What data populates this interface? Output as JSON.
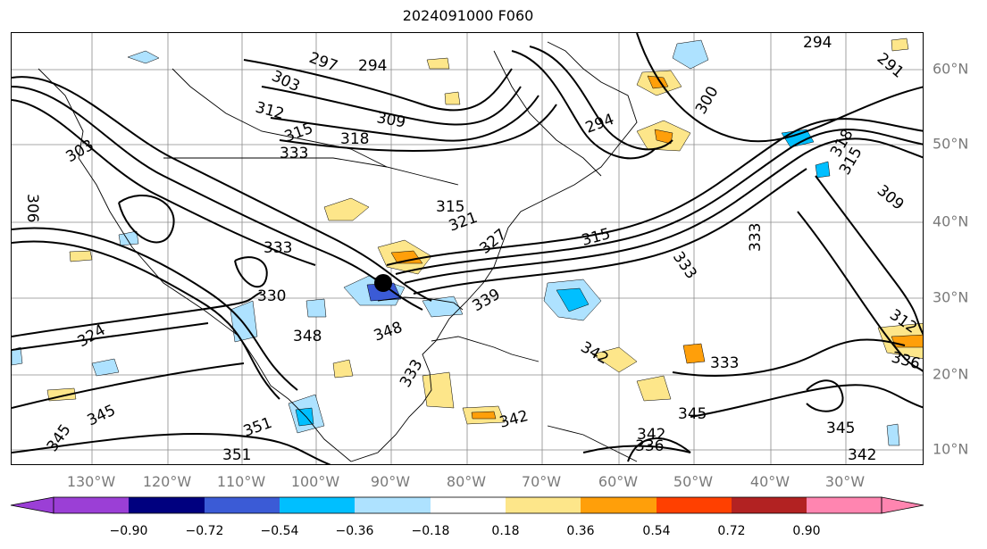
{
  "title": "2024091000 F060",
  "lon_labels": [
    "130°W",
    "120°W",
    "110°W",
    "100°W",
    "90°W",
    "80°W",
    "70°W",
    "60°W",
    "50°W",
    "40°W",
    "30°W"
  ],
  "lat_labels": [
    "60°N",
    "50°N",
    "40°N",
    "30°N",
    "20°N",
    "10°N"
  ],
  "contour_labels": [
    "294",
    "297",
    "303",
    "312",
    "309",
    "315",
    "318",
    "330",
    "333",
    "306",
    "321",
    "327",
    "315",
    "309",
    "291",
    "300",
    "294",
    "303",
    "312",
    "336",
    "339",
    "342",
    "345",
    "348",
    "351",
    "324",
    "333",
    "342",
    "345",
    "336",
    "339",
    "342"
  ],
  "colorbar": {
    "ticks": [
      "−0.90",
      "−0.72",
      "−0.54",
      "−0.36",
      "−0.18",
      "0.18",
      "0.36",
      "0.54",
      "0.72",
      "0.90"
    ],
    "colors": {
      "lt_-0.90": "#9b3fd6",
      "-0.90_-0.72": "#00007f",
      "-0.72_-0.54": "#3b5bd6",
      "-0.54_-0.36": "#00bfff",
      "-0.36_-0.18": "#aee2ff",
      "-0.18_0.18": "#ffffff",
      "0.18_0.36": "#fde68a",
      "0.36_0.54": "#ff9f0a",
      "0.54_0.72": "#ff4000",
      "0.72_0.90": "#b22222",
      "gt_0.90": "#ff85b0"
    }
  },
  "storm_marker": "hurricane-center-dot"
}
